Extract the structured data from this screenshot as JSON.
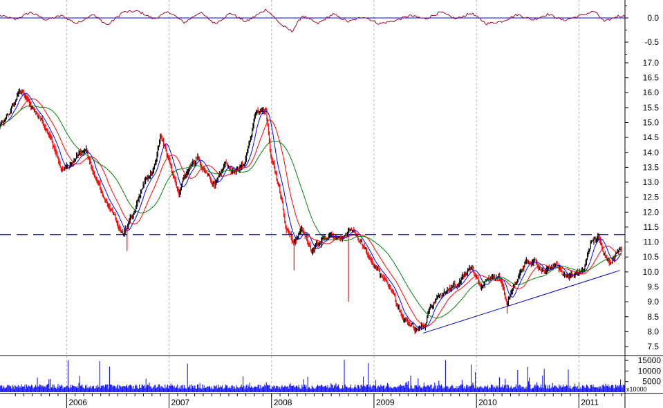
{
  "chart_data": {
    "type": "candlestick",
    "x_ticks": [
      "2006",
      "2007",
      "2008",
      "2009",
      "2010",
      "2011"
    ],
    "oscillator_panel": {
      "y_ticks": [
        "0.0",
        "-0.5"
      ],
      "zero_line": 0.0,
      "series": [
        {
          "x": 2005.35,
          "y": 0.05
        },
        {
          "x": 2005.5,
          "y": -0.03
        },
        {
          "x": 2005.65,
          "y": 0.12
        },
        {
          "x": 2005.8,
          "y": -0.04
        },
        {
          "x": 2005.95,
          "y": 0.05
        },
        {
          "x": 2006.1,
          "y": -0.12
        },
        {
          "x": 2006.25,
          "y": 0.08
        },
        {
          "x": 2006.4,
          "y": -0.15
        },
        {
          "x": 2006.55,
          "y": 0.12
        },
        {
          "x": 2006.7,
          "y": 0.14
        },
        {
          "x": 2006.85,
          "y": -0.02
        },
        {
          "x": 2007.0,
          "y": 0.13
        },
        {
          "x": 2007.15,
          "y": -0.1
        },
        {
          "x": 2007.3,
          "y": 0.12
        },
        {
          "x": 2007.45,
          "y": -0.12
        },
        {
          "x": 2007.6,
          "y": 0.1
        },
        {
          "x": 2007.75,
          "y": -0.08
        },
        {
          "x": 2007.95,
          "y": 0.18
        },
        {
          "x": 2008.1,
          "y": -0.15
        },
        {
          "x": 2008.2,
          "y": -0.28
        },
        {
          "x": 2008.3,
          "y": 0.05
        },
        {
          "x": 2008.45,
          "y": -0.12
        },
        {
          "x": 2008.6,
          "y": 0.08
        },
        {
          "x": 2008.75,
          "y": -0.08
        },
        {
          "x": 2008.9,
          "y": 0.03
        },
        {
          "x": 2009.05,
          "y": -0.12
        },
        {
          "x": 2009.2,
          "y": -0.06
        },
        {
          "x": 2009.35,
          "y": 0.05
        },
        {
          "x": 2009.5,
          "y": -0.02
        },
        {
          "x": 2009.65,
          "y": 0.12
        },
        {
          "x": 2009.8,
          "y": -0.02
        },
        {
          "x": 2009.95,
          "y": 0.1
        },
        {
          "x": 2010.1,
          "y": -0.12
        },
        {
          "x": 2010.25,
          "y": -0.07
        },
        {
          "x": 2010.4,
          "y": 0.07
        },
        {
          "x": 2010.55,
          "y": -0.04
        },
        {
          "x": 2010.7,
          "y": 0.08
        },
        {
          "x": 2010.85,
          "y": -0.05
        },
        {
          "x": 2011.0,
          "y": 0.04
        },
        {
          "x": 2011.15,
          "y": 0.14
        },
        {
          "x": 2011.25,
          "y": -0.08
        },
        {
          "x": 2011.38,
          "y": 0.04
        }
      ]
    },
    "price_panel": {
      "y_ticks": [
        "17.0",
        "16.5",
        "16.0",
        "15.5",
        "15.0",
        "14.5",
        "14.0",
        "13.5",
        "13.0",
        "12.5",
        "12.0",
        "11.5",
        "11.0",
        "10.5",
        "10.0",
        "9.5",
        "9.0",
        "8.5",
        "8.0",
        "7.5"
      ],
      "ylim": [
        7.2,
        17.3
      ],
      "price_path": [
        {
          "x": 2005.35,
          "y": 14.9
        },
        {
          "x": 2005.45,
          "y": 15.3
        },
        {
          "x": 2005.55,
          "y": 16.2
        },
        {
          "x": 2005.7,
          "y": 15.3
        },
        {
          "x": 2005.85,
          "y": 14.5
        },
        {
          "x": 2005.95,
          "y": 13.3
        },
        {
          "x": 2006.05,
          "y": 13.5
        },
        {
          "x": 2006.1,
          "y": 13.9
        },
        {
          "x": 2006.2,
          "y": 14.0
        },
        {
          "x": 2006.3,
          "y": 12.9
        },
        {
          "x": 2006.45,
          "y": 12.1
        },
        {
          "x": 2006.55,
          "y": 11.3
        },
        {
          "x": 2006.62,
          "y": 11.7
        },
        {
          "x": 2006.75,
          "y": 13.0
        },
        {
          "x": 2006.85,
          "y": 13.4
        },
        {
          "x": 2006.92,
          "y": 14.5
        },
        {
          "x": 2007.02,
          "y": 13.6
        },
        {
          "x": 2007.1,
          "y": 12.7
        },
        {
          "x": 2007.18,
          "y": 13.3
        },
        {
          "x": 2007.28,
          "y": 13.8
        },
        {
          "x": 2007.35,
          "y": 13.4
        },
        {
          "x": 2007.45,
          "y": 12.9
        },
        {
          "x": 2007.55,
          "y": 13.6
        },
        {
          "x": 2007.65,
          "y": 13.3
        },
        {
          "x": 2007.75,
          "y": 13.8
        },
        {
          "x": 2007.85,
          "y": 15.3
        },
        {
          "x": 2007.95,
          "y": 15.4
        },
        {
          "x": 2008.0,
          "y": 13.8
        },
        {
          "x": 2008.08,
          "y": 12.8
        },
        {
          "x": 2008.15,
          "y": 11.5
        },
        {
          "x": 2008.22,
          "y": 11.0
        },
        {
          "x": 2008.3,
          "y": 11.5
        },
        {
          "x": 2008.4,
          "y": 10.6
        },
        {
          "x": 2008.5,
          "y": 11.2
        },
        {
          "x": 2008.6,
          "y": 11.3
        },
        {
          "x": 2008.7,
          "y": 11.1
        },
        {
          "x": 2008.8,
          "y": 11.4
        },
        {
          "x": 2008.9,
          "y": 10.9
        },
        {
          "x": 2009.0,
          "y": 10.2
        },
        {
          "x": 2009.1,
          "y": 9.7
        },
        {
          "x": 2009.2,
          "y": 9.2
        },
        {
          "x": 2009.3,
          "y": 8.3
        },
        {
          "x": 2009.4,
          "y": 8.1
        },
        {
          "x": 2009.5,
          "y": 8.2
        },
        {
          "x": 2009.55,
          "y": 8.8
        },
        {
          "x": 2009.65,
          "y": 9.3
        },
        {
          "x": 2009.75,
          "y": 9.5
        },
        {
          "x": 2009.85,
          "y": 9.7
        },
        {
          "x": 2009.95,
          "y": 10.1
        },
        {
          "x": 2010.05,
          "y": 9.5
        },
        {
          "x": 2010.15,
          "y": 9.9
        },
        {
          "x": 2010.22,
          "y": 9.9
        },
        {
          "x": 2010.3,
          "y": 8.9
        },
        {
          "x": 2010.38,
          "y": 9.6
        },
        {
          "x": 2010.48,
          "y": 10.3
        },
        {
          "x": 2010.58,
          "y": 10.4
        },
        {
          "x": 2010.68,
          "y": 10.0
        },
        {
          "x": 2010.78,
          "y": 10.2
        },
        {
          "x": 2010.88,
          "y": 9.8
        },
        {
          "x": 2010.98,
          "y": 9.9
        },
        {
          "x": 2011.05,
          "y": 10.1
        },
        {
          "x": 2011.12,
          "y": 11.0
        },
        {
          "x": 2011.2,
          "y": 11.2
        },
        {
          "x": 2011.25,
          "y": 10.6
        },
        {
          "x": 2011.32,
          "y": 10.3
        },
        {
          "x": 2011.4,
          "y": 10.7
        }
      ],
      "horizontal_line": 11.25,
      "trend_line": [
        {
          "x": 2009.48,
          "y": 7.95
        },
        {
          "x": 2011.4,
          "y": 10.05
        }
      ],
      "moving_averages": [
        {
          "color": "#0000ff"
        },
        {
          "color": "#ff0000"
        },
        {
          "color": "#008000"
        }
      ]
    },
    "volume_panel": {
      "y_ticks": [
        "15000",
        "10000",
        "5000"
      ],
      "unit_label": "x10000",
      "ylim": [
        0,
        16000
      ]
    },
    "colors": {
      "up": "#000000",
      "down": "#ff0000",
      "oscillator": "#a0003c",
      "zero_line": "#0000ff",
      "volume": "#0000ff",
      "grid": "#b0b0b0",
      "hline": "#000080",
      "trend": "#0000cc"
    }
  }
}
